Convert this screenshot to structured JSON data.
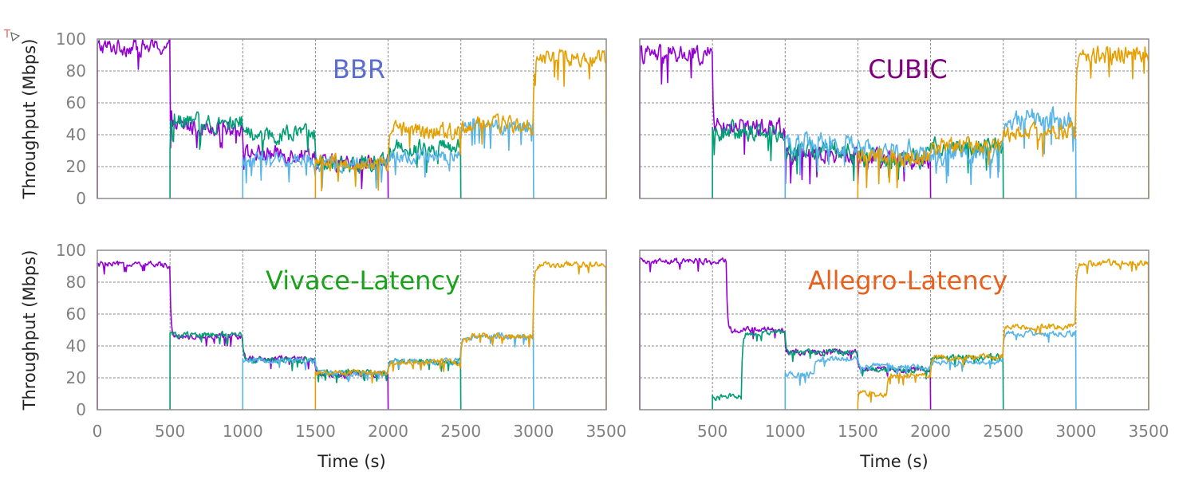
{
  "chart_data": [
    {
      "type": "line",
      "title": "BBR",
      "title_color": "#5b6ed0",
      "xlabel": "",
      "ylabel": "Throughput (Mbps)",
      "xlim": [
        0,
        3500
      ],
      "ylim": [
        0,
        100
      ],
      "x_ticks": [],
      "y_ticks": [
        "0",
        "20",
        "40",
        "60",
        "80",
        "100"
      ],
      "grid": true,
      "series": [
        {
          "color": "#9400d3",
          "start": 0,
          "stop": 2000,
          "noise": 8,
          "steps": [
            [
              0,
              95
            ],
            [
              500,
              45
            ],
            [
              1000,
              28
            ],
            [
              1500,
              22
            ]
          ]
        },
        {
          "color": "#009e73",
          "start": 500,
          "stop": 2500,
          "noise": 8,
          "steps": [
            [
              500,
              48
            ],
            [
              1000,
              40
            ],
            [
              1500,
              22
            ],
            [
              2000,
              32
            ]
          ]
        },
        {
          "color": "#56b4e9",
          "start": 1000,
          "stop": 3000,
          "noise": 7,
          "steps": [
            [
              1000,
              24
            ],
            [
              1500,
              21
            ],
            [
              2000,
              26
            ],
            [
              2500,
              45
            ]
          ]
        },
        {
          "color": "#e69f00",
          "start": 1500,
          "stop": 3500,
          "noise": 8,
          "steps": [
            [
              1500,
              22
            ],
            [
              2000,
              42
            ],
            [
              2500,
              46
            ],
            [
              3000,
              88
            ]
          ]
        }
      ]
    },
    {
      "type": "line",
      "title": "CUBIC",
      "title_color": "#800080",
      "xlabel": "",
      "ylabel": "",
      "xlim": [
        0,
        3500
      ],
      "ylim": [
        0,
        100
      ],
      "x_ticks": [],
      "y_ticks": [],
      "grid": true,
      "series": [
        {
          "color": "#9400d3",
          "start": 0,
          "stop": 2000,
          "noise": 9,
          "steps": [
            [
              0,
              90
            ],
            [
              500,
              45
            ],
            [
              1000,
              28
            ],
            [
              1500,
              25
            ]
          ]
        },
        {
          "color": "#009e73",
          "start": 500,
          "stop": 2500,
          "noise": 9,
          "steps": [
            [
              500,
              42
            ],
            [
              1000,
              30
            ],
            [
              1500,
              25
            ],
            [
              2000,
              33
            ]
          ]
        },
        {
          "color": "#56b4e9",
          "start": 1000,
          "stop": 3000,
          "noise": 10,
          "steps": [
            [
              1000,
              35
            ],
            [
              1500,
              30
            ],
            [
              2000,
              28
            ],
            [
              2500,
              50
            ]
          ]
        },
        {
          "color": "#e69f00",
          "start": 1500,
          "stop": 3500,
          "noise": 9,
          "steps": [
            [
              1500,
              25
            ],
            [
              2000,
              32
            ],
            [
              2500,
              42
            ],
            [
              3000,
              90
            ]
          ]
        }
      ]
    },
    {
      "type": "line",
      "title": "Vivace-Latency",
      "title_color": "#1aa31a",
      "xlabel": "Time (s)",
      "ylabel": "Throughput (Mbps)",
      "xlim": [
        0,
        3500
      ],
      "ylim": [
        0,
        100
      ],
      "x_ticks": [
        "0",
        "500",
        "1000",
        "1500",
        "2000",
        "2500",
        "3000",
        "3500"
      ],
      "y_ticks": [
        "0",
        "20",
        "40",
        "60",
        "80",
        "100"
      ],
      "grid": true,
      "series": [
        {
          "color": "#9400d3",
          "start": 0,
          "stop": 2000,
          "noise": 3,
          "steps": [
            [
              0,
              91
            ],
            [
              500,
              46
            ],
            [
              1000,
              32
            ],
            [
              1500,
              22
            ]
          ]
        },
        {
          "color": "#009e73",
          "start": 500,
          "stop": 2500,
          "noise": 3,
          "steps": [
            [
              500,
              47
            ],
            [
              1000,
              31
            ],
            [
              1500,
              23
            ],
            [
              2000,
              30
            ]
          ]
        },
        {
          "color": "#56b4e9",
          "start": 1000,
          "stop": 3000,
          "noise": 3,
          "steps": [
            [
              1000,
              31
            ],
            [
              1500,
              23
            ],
            [
              2000,
              30
            ],
            [
              2500,
              46
            ]
          ]
        },
        {
          "color": "#e69f00",
          "start": 1500,
          "stop": 3500,
          "noise": 3,
          "steps": [
            [
              1500,
              23
            ],
            [
              2000,
              30
            ],
            [
              2500,
              46
            ],
            [
              3000,
              91
            ]
          ]
        }
      ]
    },
    {
      "type": "line",
      "title": "Allegro-Latency",
      "title_color": "#e8601c",
      "xlabel": "Time (s)",
      "ylabel": "",
      "xlim": [
        0,
        3500
      ],
      "ylim": [
        0,
        100
      ],
      "x_ticks": [
        "500",
        "1000",
        "1500",
        "2000",
        "2500",
        "3000",
        "3500"
      ],
      "y_ticks": [],
      "grid": true,
      "series": [
        {
          "color": "#9400d3",
          "start": 0,
          "stop": 2000,
          "noise": 3,
          "steps": [
            [
              0,
              93
            ],
            [
              600,
              50
            ],
            [
              1000,
              36
            ],
            [
              1500,
              25
            ]
          ]
        },
        {
          "color": "#009e73",
          "start": 500,
          "stop": 2500,
          "noise": 3,
          "steps": [
            [
              500,
              8
            ],
            [
              700,
              48
            ],
            [
              1000,
              36
            ],
            [
              1500,
              25
            ],
            [
              2000,
              33
            ]
          ]
        },
        {
          "color": "#56b4e9",
          "start": 1000,
          "stop": 3000,
          "noise": 3,
          "steps": [
            [
              1000,
              22
            ],
            [
              1200,
              32
            ],
            [
              1500,
              27
            ],
            [
              2000,
              30
            ],
            [
              2500,
              48
            ]
          ]
        },
        {
          "color": "#e69f00",
          "start": 1500,
          "stop": 3500,
          "noise": 3,
          "steps": [
            [
              1500,
              10
            ],
            [
              1700,
              22
            ],
            [
              2000,
              33
            ],
            [
              2500,
              52
            ],
            [
              3000,
              92
            ]
          ]
        }
      ]
    }
  ]
}
